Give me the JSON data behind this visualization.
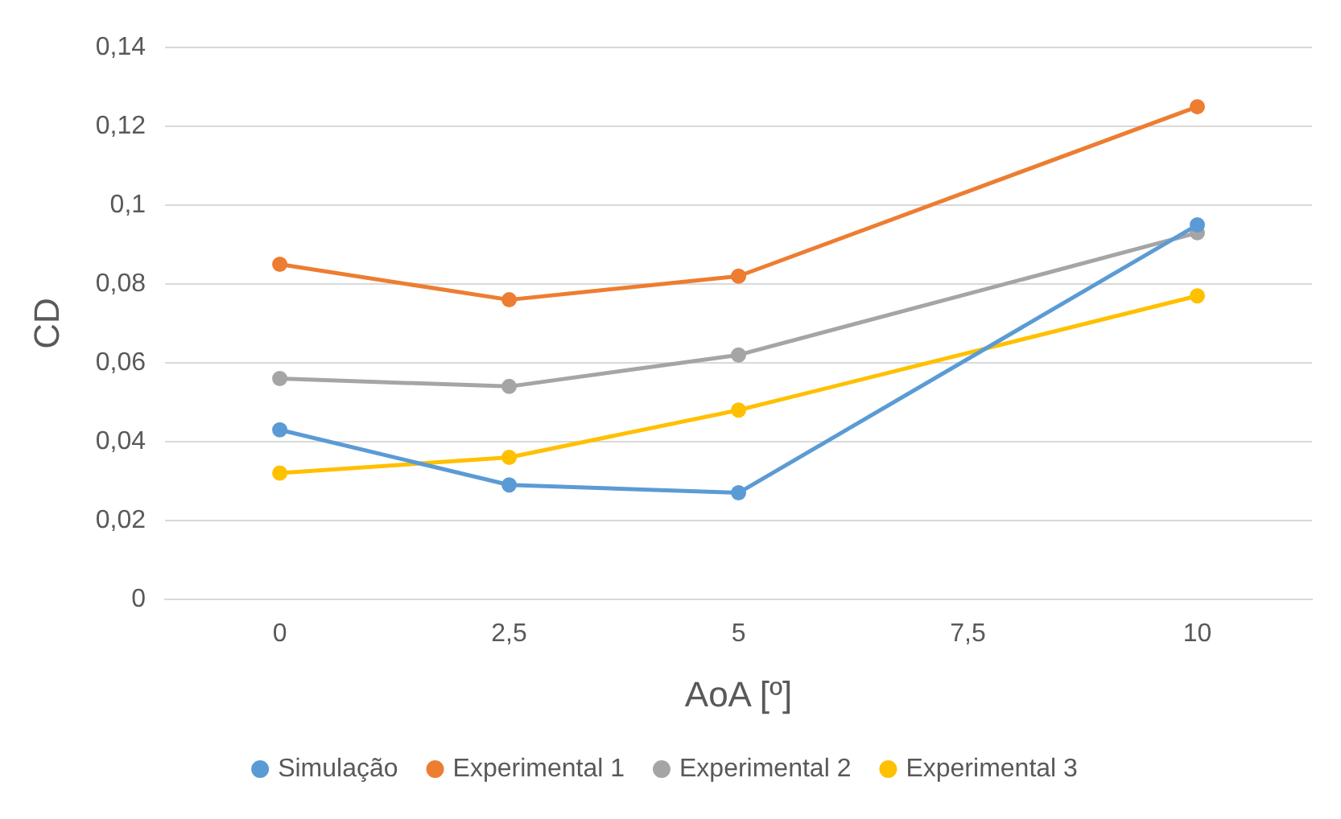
{
  "chart_data": {
    "type": "line",
    "xlabel": "AoA [º]",
    "ylabel": "CD",
    "categories": [
      "0",
      "2,5",
      "5",
      "7,5",
      "10"
    ],
    "series": [
      {
        "name": "Simulação",
        "color": "#5b9bd5",
        "values": [
          0.043,
          0.029,
          0.027,
          null,
          0.095
        ]
      },
      {
        "name": "Experimental 1",
        "color": "#ed7d31",
        "values": [
          0.085,
          0.076,
          0.082,
          null,
          0.125
        ]
      },
      {
        "name": "Experimental 2",
        "color": "#a5a5a5",
        "values": [
          0.056,
          0.054,
          0.062,
          null,
          0.093
        ]
      },
      {
        "name": "Experimental 3",
        "color": "#ffc000",
        "values": [
          0.032,
          0.036,
          0.048,
          null,
          0.077
        ]
      }
    ],
    "ylim": [
      0,
      0.14
    ],
    "yticks": [
      {
        "value": 0,
        "label": "0"
      },
      {
        "value": 0.02,
        "label": "0,02"
      },
      {
        "value": 0.04,
        "label": "0,04"
      },
      {
        "value": 0.06,
        "label": "0,06"
      },
      {
        "value": 0.08,
        "label": "0,08"
      },
      {
        "value": 0.1,
        "label": "0,1"
      },
      {
        "value": 0.12,
        "label": "0,12"
      },
      {
        "value": 0.14,
        "label": "0,14"
      }
    ],
    "grid": "y",
    "legend": "bottom",
    "marker": "circle",
    "line_style": "solid"
  }
}
